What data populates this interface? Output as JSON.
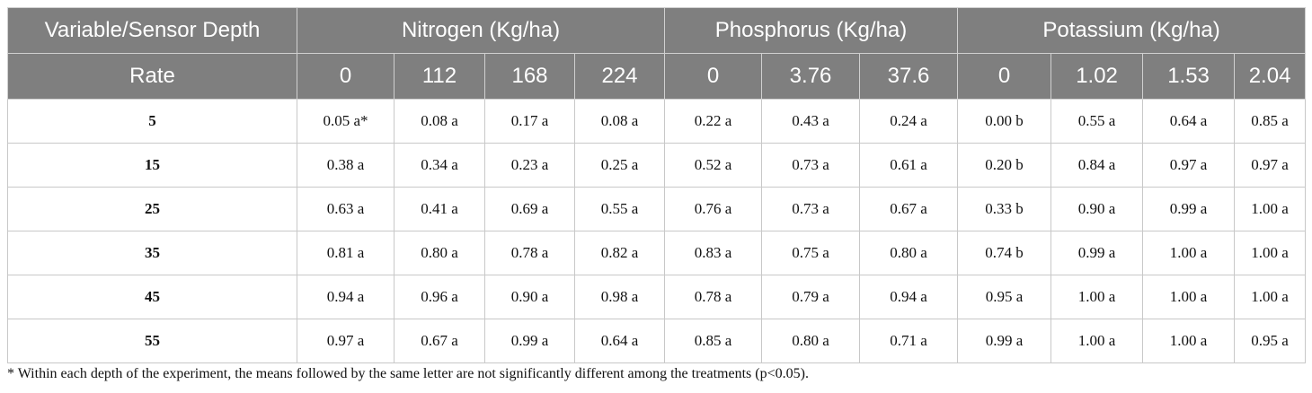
{
  "table": {
    "header": {
      "variable_label": "Variable/Sensor Depth",
      "groups": [
        "Nitrogen (Kg/ha)",
        "Phosphorus (Kg/ha)",
        "Potassium (Kg/ha)"
      ],
      "rate_label": "Rate",
      "rates": [
        "0",
        "112",
        "168",
        "224",
        "0",
        "3.76",
        "37.6",
        "0",
        "1.02",
        "1.53",
        "2.04"
      ]
    },
    "rows": [
      {
        "depth": "5",
        "values": [
          "0.05 a*",
          "0.08 a",
          "0.17 a",
          "0.08 a",
          "0.22 a",
          "0.43 a",
          "0.24 a",
          "0.00 b",
          "0.55 a",
          "0.64 a",
          "0.85 a"
        ]
      },
      {
        "depth": "15",
        "values": [
          "0.38 a",
          "0.34 a",
          "0.23 a",
          "0.25 a",
          "0.52 a",
          "0.73 a",
          "0.61 a",
          "0.20 b",
          "0.84 a",
          "0.97 a",
          "0.97 a"
        ]
      },
      {
        "depth": "25",
        "values": [
          "0.63 a",
          "0.41 a",
          "0.69 a",
          "0.55 a",
          "0.76 a",
          "0.73 a",
          "0.67 a",
          "0.33 b",
          "0.90 a",
          "0.99 a",
          "1.00 a"
        ]
      },
      {
        "depth": "35",
        "values": [
          "0.81 a",
          "0.80 a",
          "0.78 a",
          "0.82 a",
          "0.83 a",
          "0.75 a",
          "0.80 a",
          "0.74 b",
          "0.99 a",
          "1.00 a",
          "1.00 a"
        ]
      },
      {
        "depth": "45",
        "values": [
          "0.94 a",
          "0.96 a",
          "0.90 a",
          "0.98 a",
          "0.78 a",
          "0.79 a",
          "0.94 a",
          "0.95 a",
          "1.00 a",
          "1.00 a",
          "1.00 a"
        ]
      },
      {
        "depth": "55",
        "values": [
          "0.97 a",
          "0.67 a",
          "0.99 a",
          "0.64 a",
          "0.85 a",
          "0.80 a",
          "0.71 a",
          "0.99 a",
          "1.00 a",
          "1.00 a",
          "0.95 a"
        ]
      }
    ]
  },
  "footnote": "* Within each depth of the experiment, the means followed by the same letter are not significantly different among the treatments (p<0.05)."
}
